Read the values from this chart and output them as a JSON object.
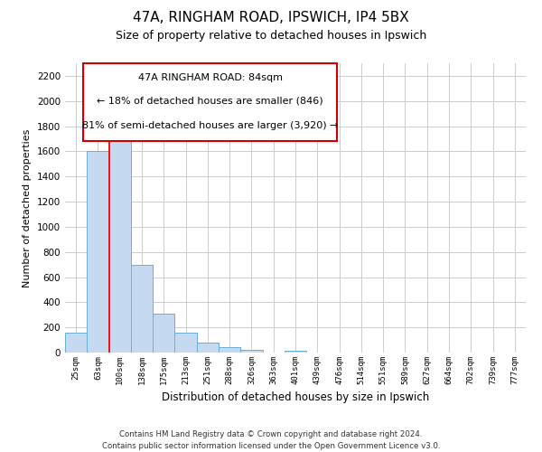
{
  "title": "47A, RINGHAM ROAD, IPSWICH, IP4 5BX",
  "subtitle": "Size of property relative to detached houses in Ipswich",
  "xlabel": "Distribution of detached houses by size in Ipswich",
  "ylabel": "Number of detached properties",
  "categories": [
    "25sqm",
    "63sqm",
    "100sqm",
    "138sqm",
    "175sqm",
    "213sqm",
    "251sqm",
    "288sqm",
    "326sqm",
    "363sqm",
    "401sqm",
    "439sqm",
    "476sqm",
    "514sqm",
    "551sqm",
    "589sqm",
    "627sqm",
    "664sqm",
    "702sqm",
    "739sqm",
    "777sqm"
  ],
  "values": [
    160,
    1600,
    1750,
    700,
    310,
    155,
    80,
    45,
    25,
    0,
    15,
    0,
    0,
    0,
    0,
    0,
    0,
    0,
    0,
    0,
    0
  ],
  "bar_color": "#c5d9f0",
  "bar_edge_color": "#6baed6",
  "bar_edge_width": 0.7,
  "annotation_text_line1": "47A RINGHAM ROAD: 84sqm",
  "annotation_text_line2": "← 18% of detached houses are smaller (846)",
  "annotation_text_line3": "81% of semi-detached houses are larger (3,920) →",
  "annotation_box_color": "#ffffff",
  "annotation_box_edge": "#cc0000",
  "red_line_x": 1.5,
  "ylim": [
    0,
    2300
  ],
  "yticks": [
    0,
    200,
    400,
    600,
    800,
    1000,
    1200,
    1400,
    1600,
    1800,
    2000,
    2200
  ],
  "grid_color": "#cccccc",
  "bg_color": "#ffffff",
  "footer_line1": "Contains HM Land Registry data © Crown copyright and database right 2024.",
  "footer_line2": "Contains public sector information licensed under the Open Government Licence v3.0."
}
